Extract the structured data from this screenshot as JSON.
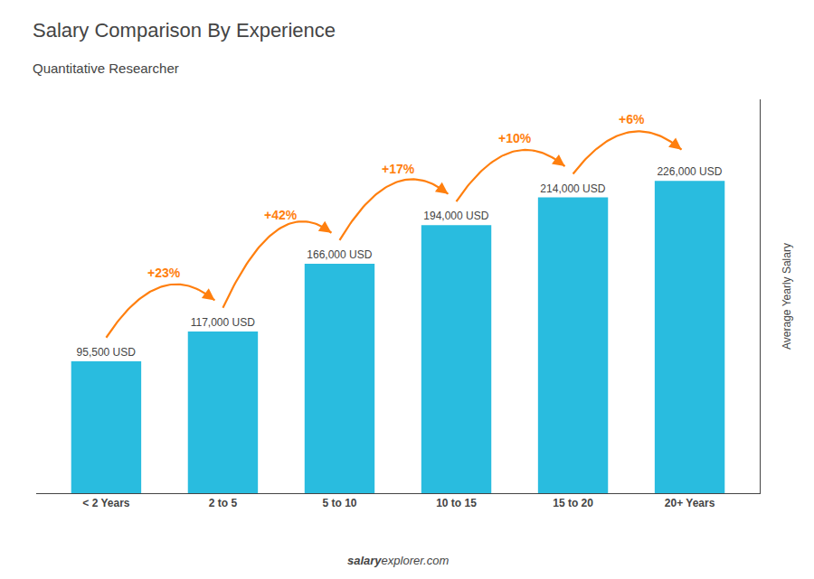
{
  "chart_data": {
    "type": "bar",
    "title": "Salary Comparison By Experience",
    "subtitle": "Quantitative Researcher",
    "categories": [
      "< 2 Years",
      "2 to 5",
      "5 to 10",
      "10 to 15",
      "15 to 20",
      "20+ Years"
    ],
    "values": [
      95500,
      117000,
      166000,
      194000,
      214000,
      226000
    ],
    "value_labels": [
      "95,500 USD",
      "117,000 USD",
      "166,000 USD",
      "194,000 USD",
      "214,000 USD",
      "226,000 USD"
    ],
    "data_labels": true,
    "color": "#29BCDF",
    "ylabel": "Average Yearly Salary",
    "ylim": [
      0,
      285000
    ],
    "tick_labels": "x",
    "grid": false,
    "annotations": [
      "+23%",
      "+42%",
      "+17%",
      "+10%",
      "+6%"
    ],
    "footer": [
      "salary",
      "explorer.com"
    ]
  }
}
